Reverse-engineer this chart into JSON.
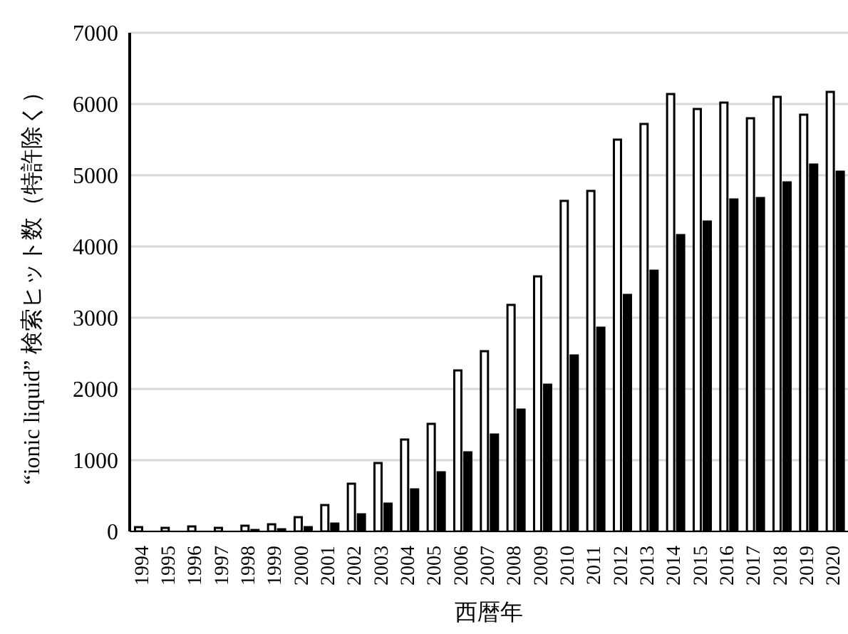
{
  "chart_data": {
    "type": "bar",
    "xlabel": "西暦年",
    "ylabel": "“ionic liquid” 検索ヒット数（特許除く）",
    "categories": [
      "1994",
      "1995",
      "1996",
      "1997",
      "1998",
      "1999",
      "2000",
      "2001",
      "2002",
      "2003",
      "2004",
      "2005",
      "2006",
      "2007",
      "2008",
      "2009",
      "2010",
      "2011",
      "2012",
      "2013",
      "2014",
      "2015",
      "2016",
      "2017",
      "2018",
      "2019",
      "2020"
    ],
    "series": [
      {
        "color": "#ffffff",
        "values": [
          60,
          50,
          70,
          50,
          80,
          100,
          200,
          370,
          670,
          960,
          1290,
          1510,
          2260,
          2530,
          3180,
          3580,
          4640,
          4780,
          5500,
          5720,
          6140,
          5930,
          6020,
          5800,
          6100,
          5850,
          6170
        ]
      },
      {
        "color": "#000000",
        "values": [
          null,
          null,
          null,
          null,
          20,
          30,
          60,
          110,
          240,
          390,
          590,
          830,
          1110,
          1360,
          1710,
          2060,
          2470,
          2860,
          3320,
          3660,
          4160,
          4350,
          4660,
          4680,
          4900,
          5150,
          5050
        ]
      }
    ],
    "ylim": [
      0,
      7000
    ],
    "yticks": [
      0,
      1000,
      2000,
      3000,
      4000,
      5000,
      6000,
      7000
    ],
    "grid": "y",
    "legend": false
  }
}
